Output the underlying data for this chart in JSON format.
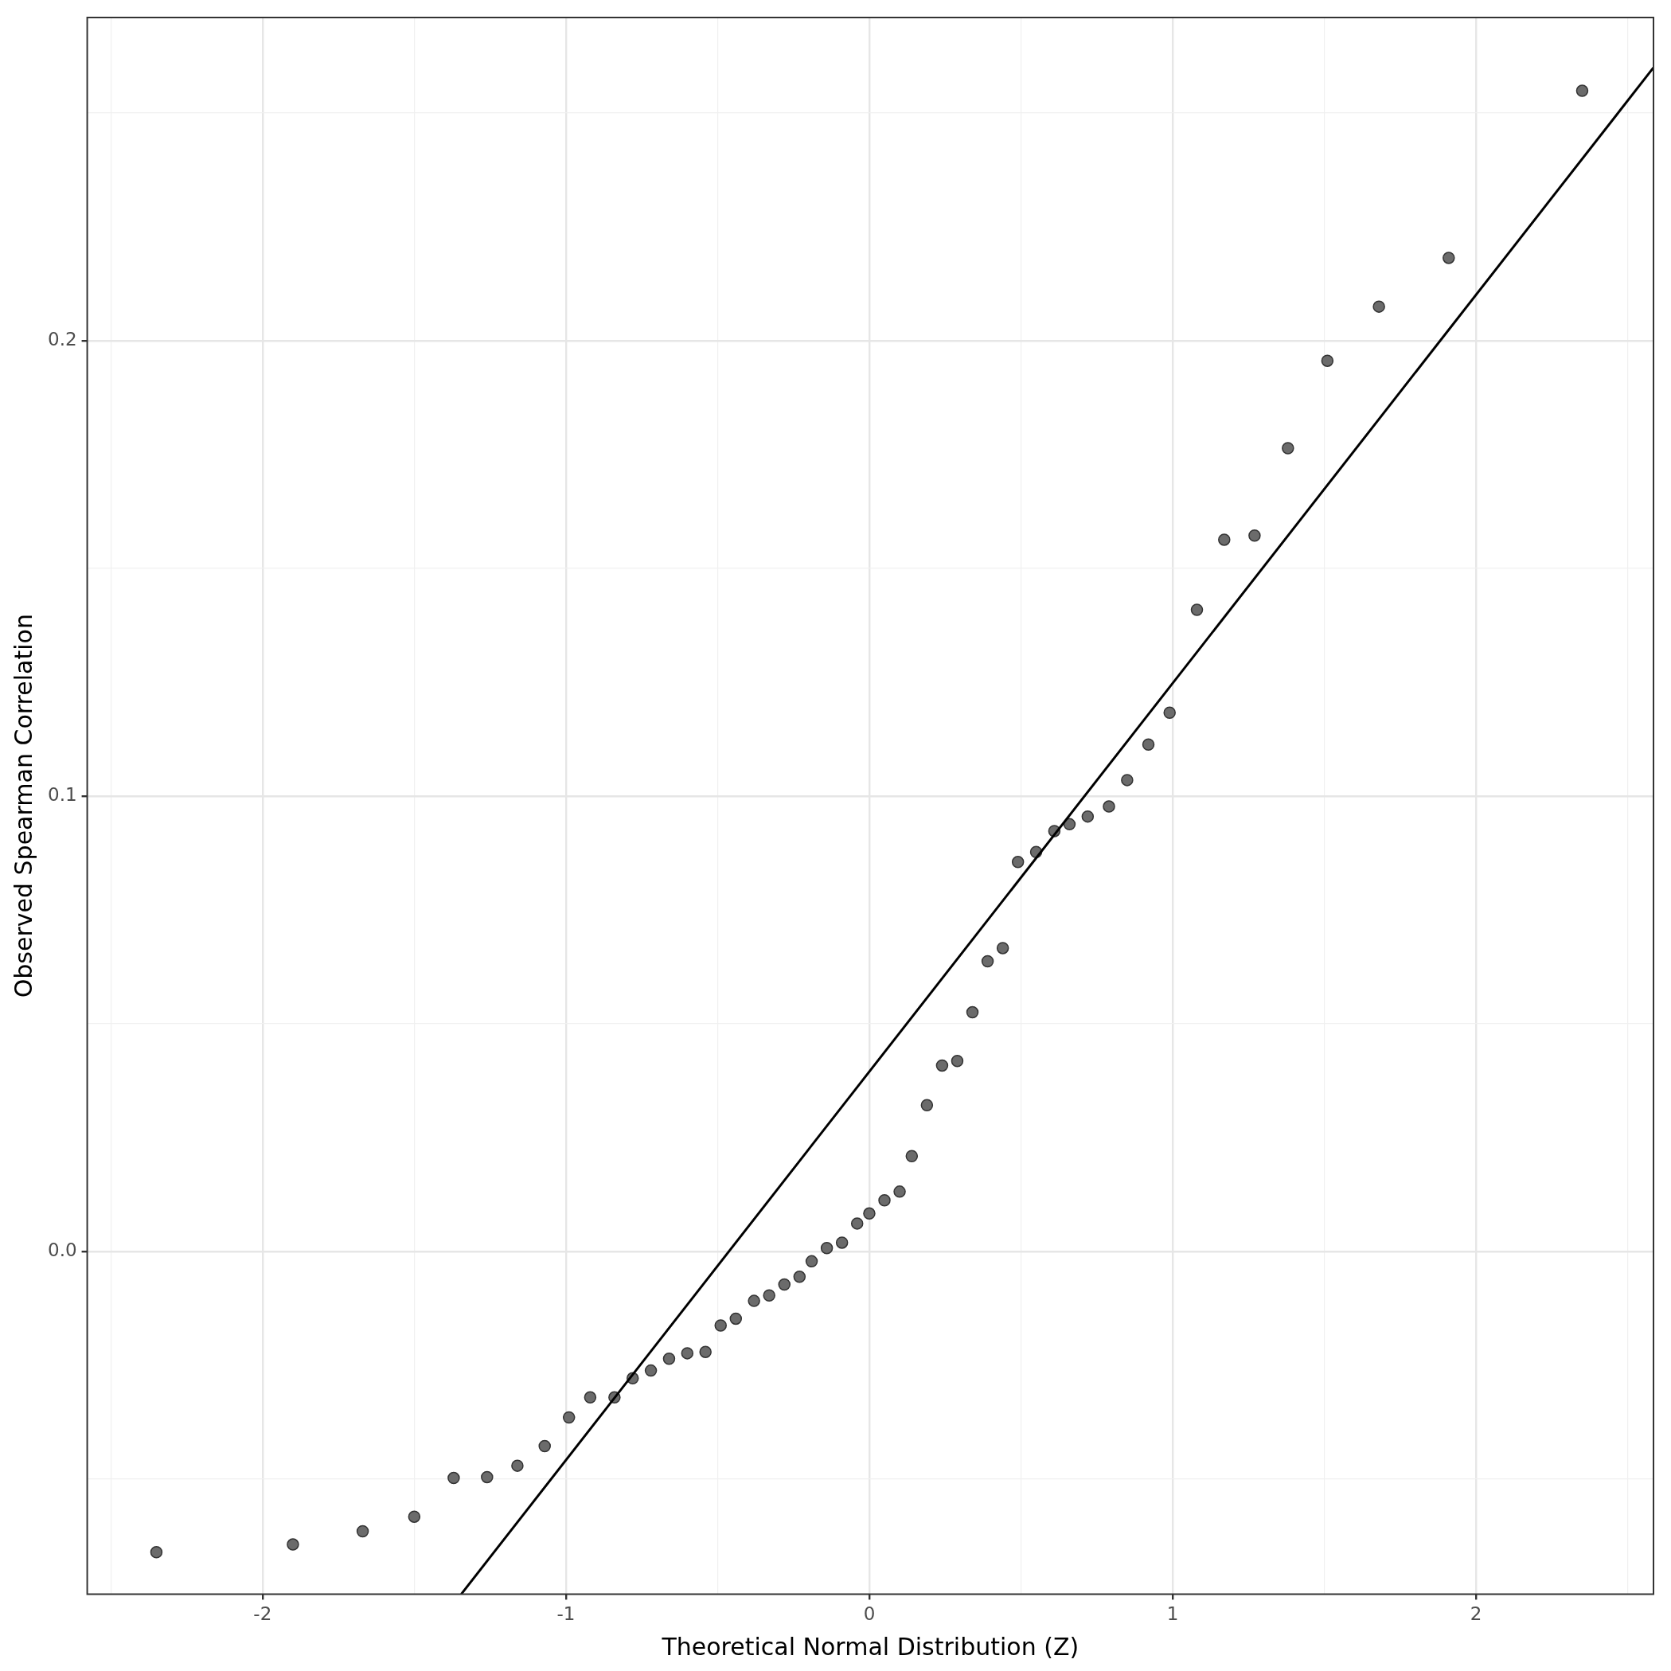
{
  "chart_data": {
    "type": "scatter",
    "xlabel": "Theoretical Normal Distribution (Z)",
    "ylabel": "Observed Spearman Correlation",
    "xlim": [
      -2.578,
      2.585
    ],
    "ylim": [
      -0.0753,
      0.271
    ],
    "xticks": [
      {
        "value": -2.5,
        "label": null
      },
      -2,
      {
        "value": -1.5,
        "label": null
      },
      -1,
      {
        "value": -0.5,
        "label": null
      },
      0,
      {
        "value": 0.5,
        "label": null
      },
      1,
      {
        "value": 1.5,
        "label": null
      },
      2,
      {
        "value": 2.5,
        "label": null
      }
    ],
    "yticks": [
      {
        "value": -0.05,
        "label": null
      },
      {
        "value": 0,
        "label": "0.0"
      },
      {
        "value": 0.05,
        "label": null
      },
      0.1,
      {
        "value": 0.15,
        "label": null
      },
      0.2,
      {
        "value": 0.25,
        "label": null
      }
    ],
    "grid": true,
    "series": [
      {
        "marker": "circle",
        "color": "#6b6b6b",
        "x": [
          -2.35,
          -1.9,
          -1.67,
          -1.5,
          -1.37,
          -1.26,
          -1.16,
          -1.07,
          -0.99,
          -0.92,
          -0.84,
          -0.78,
          -0.72,
          -0.66,
          -0.6,
          -0.54,
          -0.49,
          -0.44,
          -0.38,
          -0.33,
          -0.28,
          -0.23,
          -0.19,
          -0.14,
          -0.09,
          -0.04,
          0,
          0.05,
          0.1,
          0.14,
          0.19,
          0.24,
          0.29,
          0.34,
          0.39,
          0.44,
          0.49,
          0.55,
          0.61,
          0.66,
          0.72,
          0.79,
          0.85,
          0.92,
          0.99,
          1.08,
          1.17,
          1.27,
          1.38,
          1.51,
          1.68,
          1.91,
          2.35
        ],
        "values": [
          -0.0661,
          -0.0644,
          -0.0615,
          -0.0583,
          -0.0498,
          -0.0496,
          -0.0471,
          -0.0428,
          -0.0365,
          -0.0321,
          -0.0321,
          -0.0279,
          -0.0262,
          -0.0236,
          -0.0224,
          -0.0221,
          -0.0163,
          -0.0148,
          -0.0109,
          -0.0097,
          -0.0073,
          -0.0056,
          -0.0022,
          0.0007,
          0.0019,
          0.0061,
          0.0083,
          0.0112,
          0.0131,
          0.0209,
          0.0321,
          0.0408,
          0.0418,
          0.0525,
          0.0637,
          0.0666,
          0.0855,
          0.0877,
          0.0923,
          0.0938,
          0.0955,
          0.0977,
          0.1035,
          0.1113,
          0.1183,
          0.1409,
          0.1563,
          0.1572,
          0.1764,
          0.1956,
          0.2075,
          0.2182,
          0.2549
        ]
      },
      {
        "type": "line",
        "marker": "none",
        "color": "#000000",
        "x": [
          -1.345,
          2.585
        ],
        "values": [
          -0.0753,
          0.26
        ]
      }
    ]
  }
}
